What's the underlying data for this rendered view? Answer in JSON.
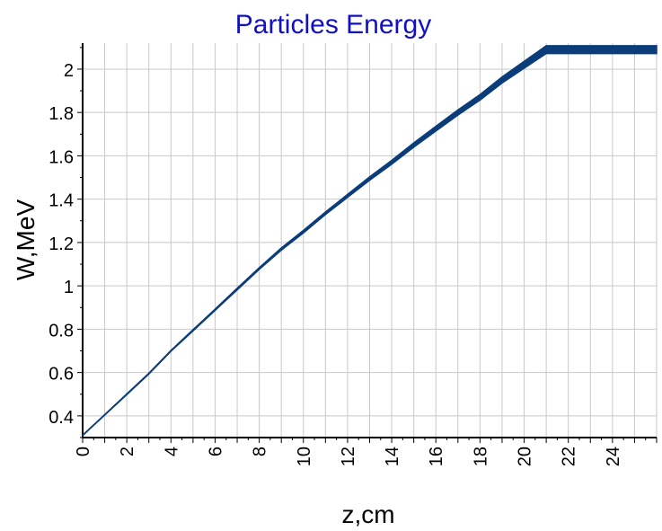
{
  "chart_data": {
    "type": "line",
    "title": "Particles Energy",
    "xlabel": "z,cm",
    "ylabel": "W,MeV",
    "xlim": [
      0,
      26
    ],
    "ylim": [
      0.3,
      2.12
    ],
    "x_ticks": [
      0,
      2,
      4,
      6,
      8,
      10,
      12,
      14,
      16,
      18,
      20,
      22,
      24
    ],
    "y_ticks": [
      0.4,
      0.6,
      0.8,
      1,
      1.2,
      1.4,
      1.6,
      1.8,
      2
    ],
    "grid": true,
    "legend": "none",
    "series": [
      {
        "color": "#0b3d7a",
        "x": [
          0,
          1,
          2,
          3,
          4,
          5,
          6,
          7,
          8,
          9,
          10,
          11,
          12,
          13,
          14,
          15,
          16,
          17,
          18,
          19,
          20,
          20.5,
          21,
          22,
          23,
          24,
          25,
          26
        ],
        "y": [
          0.31,
          0.405,
          0.5,
          0.595,
          0.7,
          0.795,
          0.89,
          0.985,
          1.08,
          1.17,
          1.25,
          1.335,
          1.415,
          1.495,
          1.57,
          1.65,
          1.725,
          1.8,
          1.87,
          1.95,
          2.02,
          2.055,
          2.09,
          2.09,
          2.09,
          2.09,
          2.09,
          2.09
        ],
        "spread": [
          0.001,
          0.001,
          0.002,
          0.002,
          0.002,
          0.003,
          0.003,
          0.004,
          0.004,
          0.005,
          0.006,
          0.006,
          0.007,
          0.008,
          0.009,
          0.01,
          0.011,
          0.012,
          0.013,
          0.014,
          0.016,
          0.017,
          0.018,
          0.018,
          0.018,
          0.018,
          0.018,
          0.018
        ]
      }
    ]
  }
}
